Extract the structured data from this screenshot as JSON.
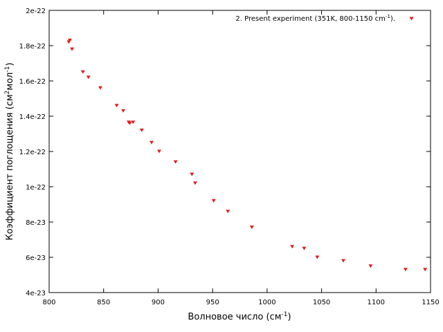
{
  "chart_data": {
    "type": "scatter",
    "xlabel": {
      "main": "Волновое число (см",
      "sup": "-1",
      "tail": ")"
    },
    "ylabel": {
      "main": "Коэффициент поглощения (см",
      "sup1": "2",
      "mid": "мол",
      "sup2": "-1",
      "tail": ")"
    },
    "xlim": [
      800,
      1150
    ],
    "ylim": [
      4e-23,
      2e-22
    ],
    "x_ticks": [
      800,
      850,
      900,
      950,
      1000,
      1050,
      1100,
      1150
    ],
    "x_tick_labels": [
      "800",
      "850",
      "900",
      "950",
      "1000",
      "1050",
      "1100",
      "1150"
    ],
    "y_ticks": [
      4e-23,
      6e-23,
      8e-23,
      1e-22,
      1.2e-22,
      1.4e-22,
      1.6e-22,
      1.8e-22,
      2e-22
    ],
    "y_tick_labels": [
      "4e-23",
      "6e-23",
      "8e-23",
      "1e-22",
      "1.2e-22",
      "1.4e-22",
      "1.6e-22",
      "1.8e-22",
      "2e-22"
    ],
    "grid": false,
    "legend_position": "top-right",
    "series": [
      {
        "name": {
          "main": "2. Present experiment (351K, 800-1150 cm",
          "sup": "-1",
          "tail": ")."
        },
        "color": "#e41a1c",
        "marker": "triangle-down",
        "x": [
          818,
          819,
          821,
          831,
          836,
          847,
          862,
          868,
          873,
          874,
          877,
          885,
          894,
          901,
          916,
          931,
          934,
          951,
          964,
          986,
          1023,
          1034,
          1046,
          1070,
          1095,
          1127,
          1145
        ],
        "y": [
          1.82e-22,
          1.83e-22,
          1.78e-22,
          1.65e-22,
          1.62e-22,
          1.56e-22,
          1.46e-22,
          1.43e-22,
          1.365e-22,
          1.36e-22,
          1.365e-22,
          1.32e-22,
          1.25e-22,
          1.2e-22,
          1.14e-22,
          1.07e-22,
          1.02e-22,
          9.2e-23,
          8.6e-23,
          7.7e-23,
          6.6e-23,
          6.5e-23,
          6e-23,
          5.8e-23,
          5.5e-23,
          5.3e-23,
          5.3e-23
        ]
      }
    ]
  }
}
